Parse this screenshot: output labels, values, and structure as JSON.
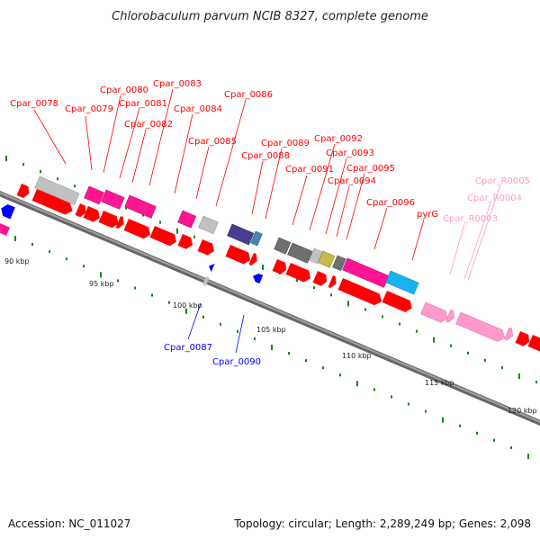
{
  "title": "Chlorobaculum parvum NCIB 8327, complete genome",
  "accession": "Accession: NC_011027",
  "summary": "Topology: circular; Length: 2,289,249 bp; Genes: 2,098",
  "colors": {
    "forward_gene": "#ff0000",
    "reverse_gene": "#0000ff",
    "rna_gene": "#ff99cc",
    "backbone": "#888888",
    "tick": "#008800",
    "feature_magenta": "#ff1493",
    "feature_grey": "#c0c0c0",
    "feature_dark_grey": "#707070",
    "feature_navy": "#4a3d8f",
    "feature_steel": "#4682b4",
    "feature_olive": "#c8b850",
    "feature_cyan": "#1ab2ee"
  },
  "scale_labels": [
    "90 kbp",
    "95 kbp",
    "100 kbp",
    "105 kbp",
    "110 kbp",
    "115 kbp",
    "120 kbp"
  ],
  "gene_labels": [
    {
      "text": "Cpar_0078",
      "strand": "forward"
    },
    {
      "text": "Cpar_0079",
      "strand": "forward"
    },
    {
      "text": "Cpar_0080",
      "strand": "forward"
    },
    {
      "text": "Cpar_0081",
      "strand": "forward"
    },
    {
      "text": "Cpar_0082",
      "strand": "forward"
    },
    {
      "text": "Cpar_0083",
      "strand": "forward"
    },
    {
      "text": "Cpar_0084",
      "strand": "forward"
    },
    {
      "text": "Cpar_0085",
      "strand": "forward"
    },
    {
      "text": "Cpar_0086",
      "strand": "forward"
    },
    {
      "text": "Cpar_0088",
      "strand": "forward"
    },
    {
      "text": "Cpar_0089",
      "strand": "forward"
    },
    {
      "text": "Cpar_0091",
      "strand": "forward"
    },
    {
      "text": "Cpar_0092",
      "strand": "forward"
    },
    {
      "text": "Cpar_0093",
      "strand": "forward"
    },
    {
      "text": "Cpar_0094",
      "strand": "forward"
    },
    {
      "text": "Cpar_0095",
      "strand": "forward"
    },
    {
      "text": "Cpar_0096",
      "strand": "forward"
    },
    {
      "text": "pyrG",
      "strand": "forward"
    },
    {
      "text": "Cpar_R0003",
      "strand": "rna"
    },
    {
      "text": "Cpar_R0004",
      "strand": "rna"
    },
    {
      "text": "Cpar_R0005",
      "strand": "rna"
    },
    {
      "text": "Cpar_0087",
      "strand": "reverse"
    },
    {
      "text": "Cpar_0090",
      "strand": "reverse"
    }
  ]
}
